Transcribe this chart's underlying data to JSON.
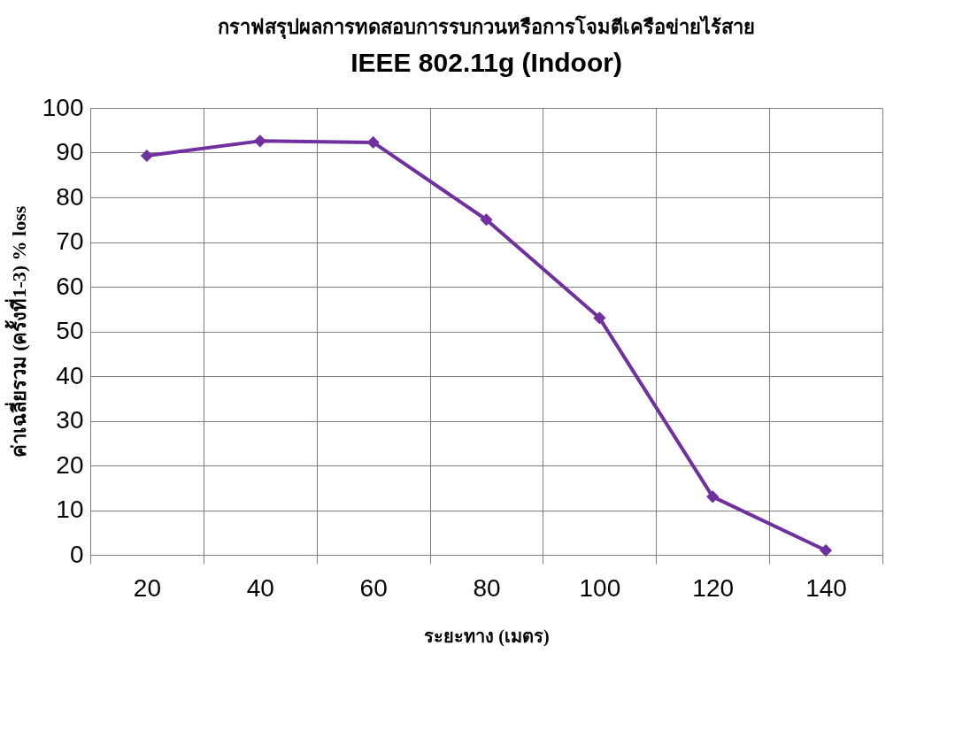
{
  "chart_data": {
    "type": "line",
    "title": "กราฟสรุปผลการทดสอบการรบกวนหรือการโจมตีเครือข่ายไร้สาย",
    "subtitle": "IEEE 802.11g (Indoor)",
    "xlabel": "ระยะทาง (เมตร)",
    "ylabel": "ค่าเฉลี่ยรวม (ครั้งที่1-3) % loss",
    "categories": [
      "20",
      "40",
      "60",
      "80",
      "100",
      "120",
      "140"
    ],
    "series": [
      {
        "color": "#7030a0",
        "values": [
          89.3,
          92.6,
          92.3,
          75,
          53,
          13,
          1
        ]
      }
    ],
    "ylim": [
      0,
      100
    ],
    "yticks": [
      0,
      10,
      20,
      30,
      40,
      50,
      60,
      70,
      80,
      90,
      100
    ],
    "grid": true,
    "marker": "diamond",
    "line_style": "solid"
  }
}
